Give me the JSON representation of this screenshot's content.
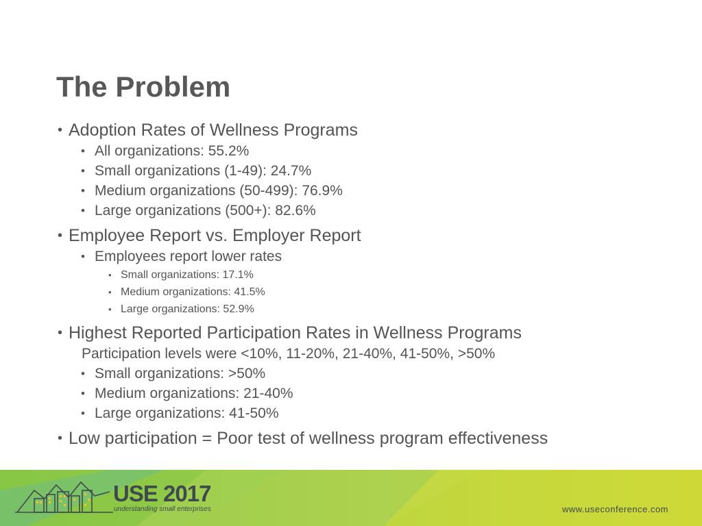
{
  "slide": {
    "title": "The Problem",
    "sections": [
      {
        "heading": "Adoption Rates of Wellness Programs",
        "items": [
          "All organizations: 55.2%",
          "Small organizations (1-49): 24.7%",
          "Medium organizations (50-499): 76.9%",
          "Large organizations (500+): 82.6%"
        ]
      },
      {
        "heading": "Employee Report vs. Employer Report",
        "sub_heading": "Employees report lower rates",
        "sub_items": [
          "Small organizations: 17.1%",
          "Medium organizations: 41.5%",
          "Large organizations: 52.9%"
        ]
      },
      {
        "heading": "Highest Reported Participation Rates in Wellness Programs",
        "note": "Participation levels were <10%, 11-20%, 21-40%, 41-50%, >50%",
        "items": [
          "Small organizations: >50%",
          "Medium organizations: 21-40%",
          "Large organizations: 41-50%"
        ]
      },
      {
        "heading": "Low participation = Poor test of wellness program effectiveness"
      }
    ]
  },
  "footer": {
    "logo_text": "USE 2017",
    "tagline": "understanding small enterprises",
    "url": "www.useconference.com",
    "colors": {
      "green": "#8dc63f",
      "yellow_green": "#c5d430",
      "dark": "#3f4a4e",
      "teal": "#4a8a7a"
    }
  }
}
